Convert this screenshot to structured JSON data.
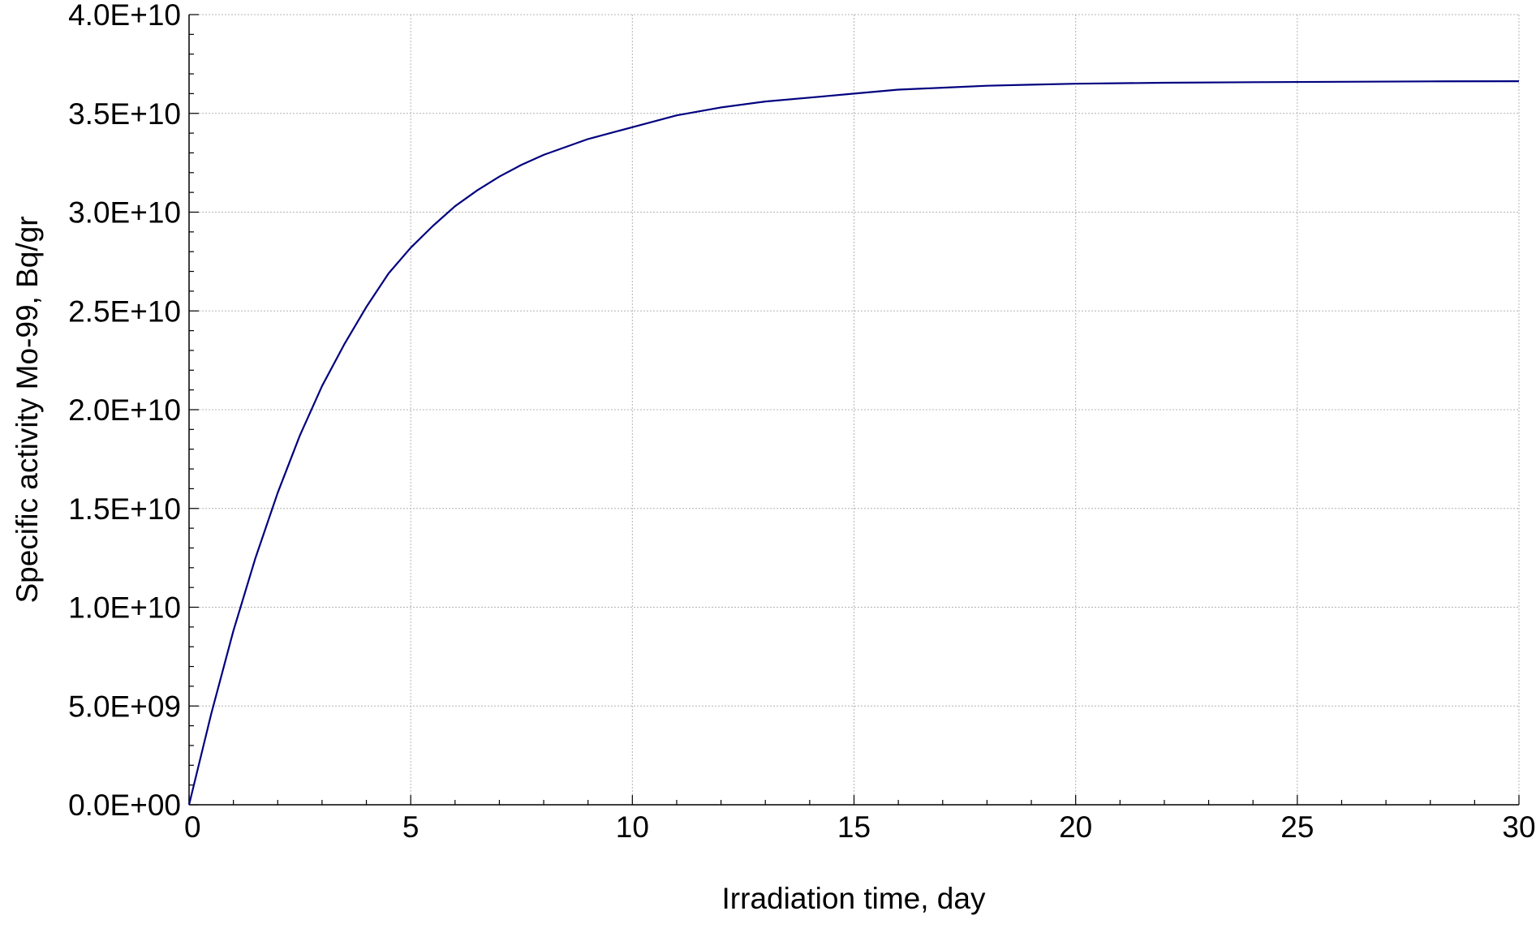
{
  "chart_data": {
    "type": "line",
    "title": "",
    "xlabel": "Irradiation time, day",
    "ylabel": "Specific activity Mo-99, Bq/gr",
    "xlim": [
      0,
      30
    ],
    "ylim": [
      0,
      40000000000
    ],
    "grid": true,
    "legend": "none",
    "x_ticks": [
      0,
      5,
      10,
      15,
      20,
      25,
      30
    ],
    "x_tick_labels": [
      "0",
      "5",
      "10",
      "15",
      "20",
      "25",
      "30"
    ],
    "y_ticks": [
      0,
      5000000000,
      10000000000,
      15000000000,
      20000000000,
      25000000000,
      30000000000,
      35000000000,
      40000000000
    ],
    "y_tick_labels": [
      "0.0E+00",
      "5.0E+09",
      "1.0E+10",
      "1.5E+10",
      "2.0E+10",
      "2.5E+10",
      "3.0E+10",
      "3.5E+10",
      "4.0E+10"
    ],
    "series": [
      {
        "color": "#00007f",
        "x": [
          0,
          0.5,
          1,
          1.5,
          2,
          2.5,
          3,
          3.5,
          4,
          4.5,
          5,
          5.5,
          6,
          6.5,
          7,
          7.5,
          8,
          9,
          10,
          11,
          12,
          13,
          14,
          15,
          16,
          17,
          18,
          19,
          20,
          22,
          24,
          26,
          28,
          30
        ],
        "values": [
          0,
          4600000000,
          8800000000,
          12500000000,
          15800000000,
          18700000000,
          21200000000,
          23300000000,
          25200000000,
          26900000000,
          28200000000,
          29300000000,
          30300000000,
          31100000000,
          31800000000,
          32400000000,
          32900000000,
          33700000000,
          34300000000,
          34900000000,
          35300000000,
          35600000000,
          35800000000,
          36000000000,
          36200000000,
          36300000000,
          36400000000,
          36450000000,
          36500000000,
          36550000000,
          36580000000,
          36600000000,
          36620000000,
          36630000000
        ]
      }
    ]
  }
}
